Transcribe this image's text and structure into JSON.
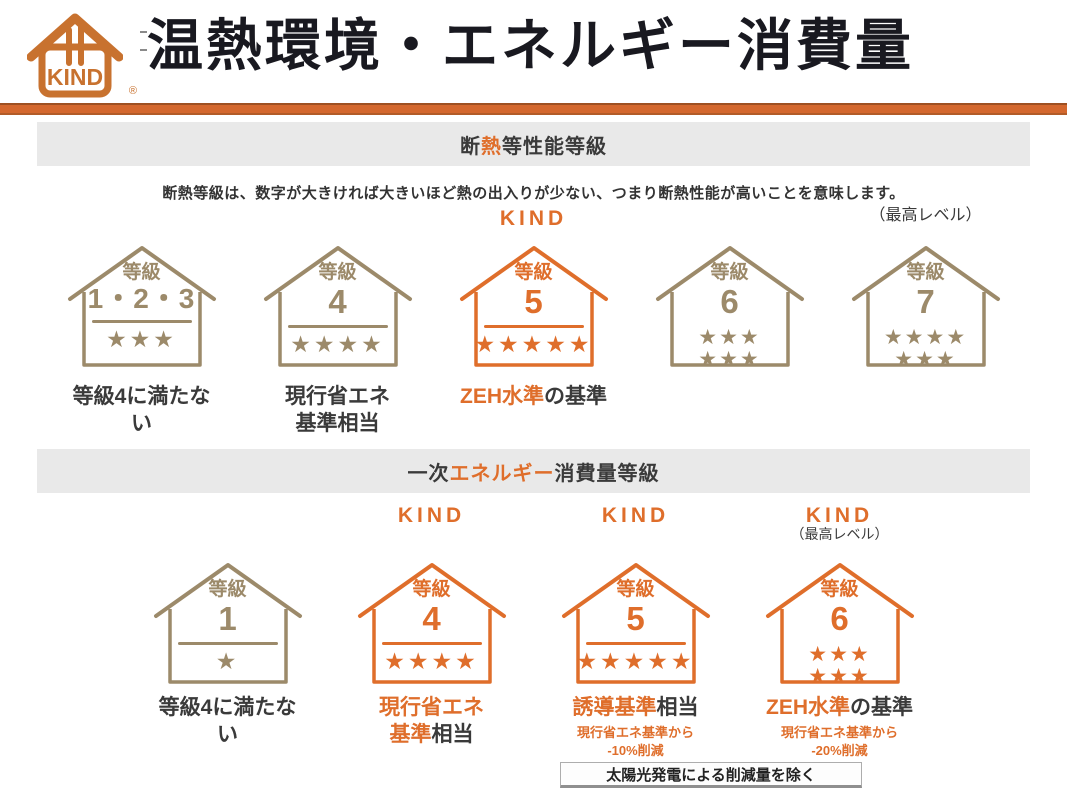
{
  "page": {
    "logo": {
      "text": "KIND",
      "registered": "®"
    },
    "title": "温熱環境・エネルギー消費量",
    "colors": {
      "orange": "#df6e2b",
      "tan": "#9c8a6a",
      "dark": "#3a3a3a",
      "rule_orange": "#d4682e",
      "bar_gray": "#e9e9e9",
      "title_dark": "#191920"
    }
  },
  "sections": [
    {
      "header": [
        {
          "text": "断",
          "color": "dark"
        },
        {
          "text": "熱",
          "color": "orange"
        },
        {
          "text": "等性能等級",
          "color": "dark"
        }
      ],
      "description": "断熱等級は、数字が大きければ大きいほど熱の出入りが少ない、つまり断熱性能が高いことを意味します。",
      "houses": [
        {
          "grade_label": "等級",
          "grade_value": "1・2・3",
          "color": "tan",
          "star_rows": [
            3
          ],
          "caption_lines": [
            [
              {
                "text": "等級4に満たない",
                "color": "dark"
              }
            ]
          ]
        },
        {
          "grade_label": "等級",
          "grade_value": "4",
          "color": "tan",
          "star_rows": [
            4
          ],
          "caption_lines": [
            [
              {
                "text": "現行省エネ",
                "color": "dark"
              }
            ],
            [
              {
                "text": "基準相当",
                "color": "dark"
              }
            ]
          ]
        },
        {
          "overhead": "KIND",
          "grade_label": "等級",
          "grade_value": "5",
          "color": "orange",
          "star_rows": [
            5
          ],
          "caption_lines": [
            [
              {
                "text": "ZEH水準",
                "color": "orange"
              },
              {
                "text": "の基準",
                "color": "dark"
              }
            ]
          ]
        },
        {
          "grade_label": "等級",
          "grade_value": "6",
          "color": "tan",
          "star_rows": [
            3,
            3
          ],
          "caption_lines": []
        },
        {
          "overhead_note": "（最高レベル）",
          "grade_label": "等級",
          "grade_value": "7",
          "color": "tan",
          "star_rows": [
            4,
            3
          ],
          "caption_lines": []
        }
      ]
    },
    {
      "header": [
        {
          "text": "一次",
          "color": "dark"
        },
        {
          "text": "エネルギー",
          "color": "orange"
        },
        {
          "text": "消費量等級",
          "color": "dark"
        }
      ],
      "footnote": "太陽光発電による削減量を除く",
      "houses": [
        {
          "grade_label": "等級",
          "grade_value": "1",
          "color": "tan",
          "star_rows": [
            1
          ],
          "caption_lines": [
            [
              {
                "text": "等級4に満たない",
                "color": "dark"
              }
            ]
          ]
        },
        {
          "overhead": "KIND",
          "grade_label": "等級",
          "grade_value": "4",
          "color": "orange",
          "star_rows": [
            4
          ],
          "caption_lines": [
            [
              {
                "text": "現行省エネ",
                "color": "orange"
              }
            ],
            [
              {
                "text": "基準",
                "color": "orange"
              },
              {
                "text": "相当",
                "color": "dark"
              }
            ]
          ]
        },
        {
          "overhead": "KIND",
          "grade_label": "等級",
          "grade_value": "5",
          "color": "orange",
          "star_rows": [
            5
          ],
          "caption_lines": [
            [
              {
                "text": "誘導基準",
                "color": "orange"
              },
              {
                "text": "相当",
                "color": "dark"
              }
            ]
          ],
          "subcaption_lines": [
            "現行省エネ基準から",
            "-10%削減"
          ]
        },
        {
          "overhead": "KIND",
          "overhead_note": "（最高レベル）",
          "grade_label": "等級",
          "grade_value": "6",
          "color": "orange",
          "star_rows": [
            3,
            3
          ],
          "caption_lines": [
            [
              {
                "text": "ZEH水準",
                "color": "orange"
              },
              {
                "text": "の基準",
                "color": "dark"
              }
            ]
          ],
          "subcaption_lines": [
            "現行省エネ基準から",
            "-20%削減"
          ]
        }
      ]
    }
  ]
}
